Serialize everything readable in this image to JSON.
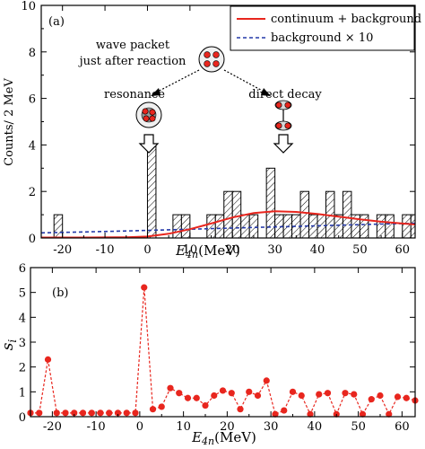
{
  "chart_data": [
    {
      "panel": "(a)",
      "type": "bar",
      "xlabel_main": "E",
      "xlabel_sub": "4n",
      "xlabel_unit": "(MeV)",
      "ylabel": "Counts/ 2 MeV",
      "xlim": [
        -25,
        63
      ],
      "ylim": [
        0,
        10
      ],
      "x_ticks": [
        "-20",
        "-10",
        "0",
        "10",
        "20",
        "30",
        "40",
        "50",
        "60"
      ],
      "y_ticks": [
        "0",
        "2",
        "4",
        "6",
        "8",
        "10"
      ],
      "bin_width": 2,
      "bars": [
        {
          "x0": -22,
          "count": 1
        },
        {
          "x0": 0,
          "count": 4
        },
        {
          "x0": 6,
          "count": 1
        },
        {
          "x0": 8,
          "count": 1
        },
        {
          "x0": 14,
          "count": 1
        },
        {
          "x0": 16,
          "count": 1
        },
        {
          "x0": 18,
          "count": 2
        },
        {
          "x0": 20,
          "count": 2
        },
        {
          "x0": 22,
          "count": 1
        },
        {
          "x0": 24,
          "count": 1
        },
        {
          "x0": 28,
          "count": 3
        },
        {
          "x0": 30,
          "count": 1
        },
        {
          "x0": 32,
          "count": 1
        },
        {
          "x0": 34,
          "count": 1
        },
        {
          "x0": 36,
          "count": 2
        },
        {
          "x0": 38,
          "count": 1
        },
        {
          "x0": 40,
          "count": 1
        },
        {
          "x0": 42,
          "count": 2
        },
        {
          "x0": 44,
          "count": 1
        },
        {
          "x0": 46,
          "count": 2
        },
        {
          "x0": 48,
          "count": 1
        },
        {
          "x0": 50,
          "count": 1
        },
        {
          "x0": 54,
          "count": 1
        },
        {
          "x0": 56,
          "count": 1
        },
        {
          "x0": 60,
          "count": 1
        },
        {
          "x0": 62,
          "count": 1
        }
      ],
      "series": [
        {
          "name": "continuum + background",
          "style": "solid",
          "color": "#e8261e",
          "x": [
            -25,
            -15,
            -5,
            0,
            5,
            10,
            15,
            20,
            25,
            30,
            35,
            40,
            45,
            50,
            55,
            60,
            63
          ],
          "y": [
            0.02,
            0.02,
            0.03,
            0.06,
            0.18,
            0.38,
            0.62,
            0.88,
            1.07,
            1.15,
            1.12,
            1.03,
            0.92,
            0.8,
            0.7,
            0.62,
            0.58
          ]
        },
        {
          "name": "background × 10",
          "style": "dashed",
          "color": "#2438a8",
          "x": [
            -25,
            -15,
            -5,
            5,
            15,
            25,
            35,
            45,
            55,
            63
          ],
          "y": [
            0.22,
            0.26,
            0.3,
            0.35,
            0.4,
            0.45,
            0.5,
            0.55,
            0.6,
            0.63
          ]
        }
      ],
      "annotations": {
        "wave_packet_line1": "wave packet",
        "wave_packet_line2": "just after reaction",
        "resonance": "resonance",
        "direct_decay": "direct decay"
      },
      "legend_position": "top-right"
    },
    {
      "panel": "(b)",
      "type": "scatter",
      "xlabel_main": "E",
      "xlabel_sub": "4n",
      "xlabel_unit": "(MeV)",
      "ylabel_main": "s",
      "ylabel_sub": "i",
      "xlim": [
        -25,
        63
      ],
      "ylim": [
        0,
        6
      ],
      "x_ticks": [
        "-20",
        "-10",
        "0",
        "10",
        "20",
        "30",
        "40",
        "50",
        "60"
      ],
      "y_ticks": [
        "0",
        "1",
        "2",
        "3",
        "4",
        "5",
        "6"
      ],
      "color": "#e8261e",
      "line_style": "dashed",
      "x": [
        -25,
        -23,
        -21,
        -19,
        -17,
        -15,
        -13,
        -11,
        -9,
        -7,
        -5,
        -3,
        -1,
        1,
        3,
        5,
        7,
        9,
        11,
        13,
        15,
        17,
        19,
        21,
        23,
        25,
        27,
        29,
        31,
        33,
        35,
        37,
        39,
        41,
        43,
        45,
        47,
        49,
        51,
        53,
        55,
        57,
        59,
        61,
        63
      ],
      "y": [
        0.15,
        0.15,
        2.3,
        0.15,
        0.15,
        0.15,
        0.15,
        0.15,
        0.15,
        0.15,
        0.15,
        0.15,
        0.15,
        5.2,
        0.3,
        0.4,
        1.15,
        0.95,
        0.75,
        0.75,
        0.45,
        0.85,
        1.05,
        0.95,
        0.3,
        1.0,
        0.85,
        1.45,
        0.1,
        0.25,
        1.0,
        0.85,
        0.1,
        0.9,
        0.95,
        0.1,
        0.95,
        0.9,
        0.1,
        0.7,
        0.85,
        0.1,
        0.8,
        0.75,
        0.65
      ]
    }
  ]
}
